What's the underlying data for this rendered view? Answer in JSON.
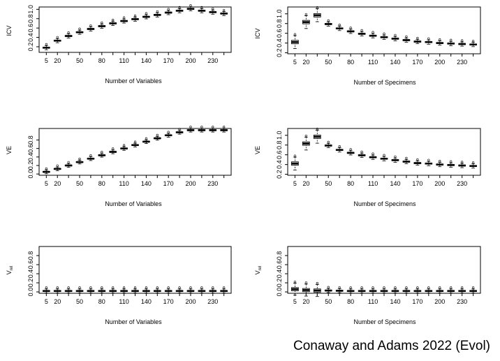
{
  "caption": "Conaway and Adams 2022 (Evol)",
  "chart_data": [
    {
      "type": "boxplot",
      "xlabel": "Number of Variables",
      "ylabel": "ICV",
      "ylim": [
        0.08,
        1.05
      ],
      "yticks": [
        "0.2",
        "0.4",
        "0.6",
        "0.8",
        "1.0"
      ],
      "xtick_labels": [
        "5",
        "20",
        "50",
        "80",
        "110",
        "140",
        "170",
        "200",
        "230"
      ],
      "categories": [
        "5",
        "20",
        "35",
        "50",
        "65",
        "80",
        "95",
        "110",
        "125",
        "140",
        "155",
        "170",
        "185",
        "200",
        "215",
        "230",
        "245"
      ],
      "medians": [
        0.18,
        0.33,
        0.43,
        0.51,
        0.58,
        0.64,
        0.7,
        0.75,
        0.79,
        0.84,
        0.88,
        0.93,
        0.97,
        1.01,
        0.97,
        0.94,
        0.91
      ],
      "fill": "#ffffff"
    },
    {
      "type": "boxplot",
      "xlabel": "Number of Specimens",
      "ylabel": "ICV",
      "ylim": [
        0.18,
        1.14
      ],
      "yticks": [
        "0.2",
        "0.4",
        "0.6",
        "0.8",
        "1.0"
      ],
      "xtick_labels": [
        "5",
        "20",
        "50",
        "80",
        "110",
        "140",
        "170",
        "200",
        "230"
      ],
      "categories": [
        "5",
        "20",
        "35",
        "50",
        "65",
        "80",
        "95",
        "110",
        "125",
        "140",
        "155",
        "170",
        "185",
        "200",
        "215",
        "230",
        "245"
      ],
      "medians": [
        0.42,
        0.83,
        0.97,
        0.79,
        0.7,
        0.64,
        0.59,
        0.55,
        0.52,
        0.49,
        0.46,
        0.43,
        0.42,
        0.4,
        0.39,
        0.38,
        0.37
      ],
      "fill": "#d9d9d9"
    },
    {
      "type": "boxplot",
      "xlabel": "Number of Variables",
      "ylabel": "VE",
      "ylim": [
        -0.03,
        1.07
      ],
      "yticks": [
        "0.0",
        "0.2",
        "0.4",
        "0.6",
        "0.8"
      ],
      "xtick_labels": [
        "5",
        "20",
        "50",
        "80",
        "110",
        "140",
        "170",
        "200",
        "230"
      ],
      "categories": [
        "5",
        "20",
        "35",
        "50",
        "65",
        "80",
        "95",
        "110",
        "125",
        "140",
        "155",
        "170",
        "185",
        "200",
        "215",
        "230",
        "245"
      ],
      "medians": [
        0.05,
        0.12,
        0.2,
        0.28,
        0.36,
        0.44,
        0.52,
        0.6,
        0.68,
        0.76,
        0.84,
        0.91,
        0.98,
        1.03,
        1.03,
        1.03,
        1.03
      ],
      "fill": "#ffffff"
    },
    {
      "type": "boxplot",
      "xlabel": "Number of Specimens",
      "ylabel": "VE",
      "ylim": [
        0.18,
        1.14
      ],
      "yticks": [
        "0.2",
        "0.4",
        "0.6",
        "0.8",
        "1.0"
      ],
      "xtick_labels": [
        "5",
        "20",
        "50",
        "80",
        "110",
        "140",
        "170",
        "200",
        "230"
      ],
      "categories": [
        "5",
        "20",
        "35",
        "50",
        "65",
        "80",
        "95",
        "110",
        "125",
        "140",
        "155",
        "170",
        "185",
        "200",
        "215",
        "230",
        "245"
      ],
      "medians": [
        0.42,
        0.83,
        0.97,
        0.79,
        0.7,
        0.64,
        0.59,
        0.55,
        0.52,
        0.49,
        0.46,
        0.43,
        0.42,
        0.4,
        0.39,
        0.38,
        0.37
      ],
      "fill": "#d9d9d9"
    },
    {
      "type": "boxplot",
      "xlabel": "Number of Variables",
      "ylabel": "V",
      "ylabel_sub": "rel",
      "ylim": [
        -0.03,
        1.0
      ],
      "yticks": [
        "0.0",
        "0.2",
        "0.4",
        "0.6",
        "0.8"
      ],
      "xtick_labels": [
        "5",
        "20",
        "50",
        "80",
        "110",
        "140",
        "170",
        "200",
        "230"
      ],
      "categories": [
        "5",
        "20",
        "35",
        "50",
        "65",
        "80",
        "95",
        "110",
        "125",
        "140",
        "155",
        "170",
        "185",
        "200",
        "215",
        "230",
        "245"
      ],
      "medians": [
        0.02,
        0.02,
        0.02,
        0.02,
        0.02,
        0.02,
        0.02,
        0.02,
        0.02,
        0.02,
        0.02,
        0.02,
        0.02,
        0.02,
        0.02,
        0.02,
        0.02
      ],
      "fill": "#ffffff"
    },
    {
      "type": "boxplot",
      "xlabel": "Number of Specimens",
      "ylabel": "V",
      "ylabel_sub": "rel",
      "ylim": [
        -0.03,
        1.0
      ],
      "yticks": [
        "0.0",
        "0.2",
        "0.4",
        "0.6",
        "0.8"
      ],
      "xtick_labels": [
        "5",
        "20",
        "50",
        "80",
        "110",
        "140",
        "170",
        "200",
        "230"
      ],
      "categories": [
        "5",
        "20",
        "35",
        "50",
        "65",
        "80",
        "95",
        "110",
        "125",
        "140",
        "155",
        "170",
        "185",
        "200",
        "215",
        "230",
        "245"
      ],
      "medians": [
        0.06,
        0.04,
        0.03,
        0.03,
        0.025,
        0.02,
        0.02,
        0.02,
        0.02,
        0.02,
        0.02,
        0.02,
        0.02,
        0.02,
        0.02,
        0.02,
        0.02
      ],
      "fill": "#d9d9d9"
    }
  ]
}
